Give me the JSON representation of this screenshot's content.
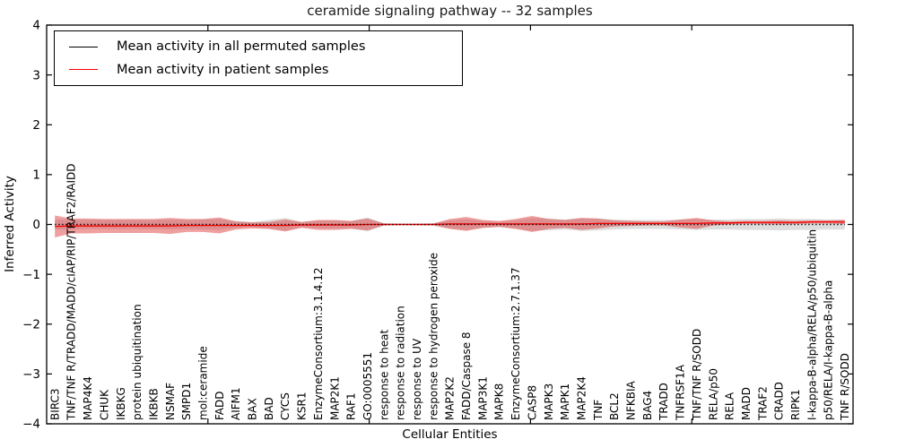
{
  "chart_data": {
    "type": "line",
    "plot_style": "mean activity lines with shaded variability bands per cellular entity",
    "title": "ceramide signaling pathway -- 32 samples",
    "xlabel": "Cellular Entities",
    "ylabel": "Inferred Activity",
    "ylim": [
      -4,
      4
    ],
    "yticks": [
      -4,
      -3,
      -2,
      -1,
      0,
      1,
      2,
      3,
      4
    ],
    "xticks": [
      10,
      20,
      30,
      40
    ],
    "legend_position": "upper left",
    "grid": false,
    "colors": {
      "permuted_line": "#000000",
      "patient_line": "#ff0000",
      "permuted_band": "#9e9e9e",
      "patient_band": "#e04040"
    },
    "categories": [
      "BIRC3",
      "TNF/TNF R/TRADD/MADD/cIAP/RIP/TRAF2/RAIDD",
      "MAP4K4",
      "CHUK",
      "IKBKG",
      "protein ubiquitination",
      "IKBKB",
      "NSMAF",
      "SMPD1",
      "mol:ceramide",
      "FADD",
      "AIFM1",
      "BAX",
      "BAD",
      "CYCS",
      "KSR1",
      "EnzymeConsortium:3.1.4.12",
      "MAP2K1",
      "RAF1",
      "GO:0005551",
      "response to heat",
      "response to radiation",
      "response to UV",
      "response to hydrogen peroxide",
      "MAP2K2",
      "FADD/Caspase 8",
      "MAP3K1",
      "MAPK8",
      "EnzymeConsortium:2.7.1.37",
      "CASP8",
      "MAPK3",
      "MAPK1",
      "MAP2K4",
      "TNF",
      "BCL2",
      "NFKBIA",
      "BAG4",
      "TRADD",
      "TNFRSF1A",
      "TNF/TNF R/SODD",
      "RELA/p50",
      "RELA",
      "MADD",
      "TRAF2",
      "CRADD",
      "RIPK1",
      "I-kappa-B-alpha/RELA/p50/ubiquitin",
      "p50/RELA/I-kappa-B-alpha",
      "TNF R/SODD"
    ],
    "series": [
      {
        "name": "Mean activity in all permuted samples",
        "mean": [
          0,
          0,
          0,
          0,
          0,
          0,
          0,
          0,
          0,
          0,
          0,
          0,
          0,
          0,
          0,
          0,
          0,
          0,
          0,
          0,
          0,
          0,
          0,
          0,
          0,
          0,
          0,
          0,
          0,
          0,
          0,
          0,
          0,
          0,
          0,
          0,
          0,
          0,
          0,
          0,
          0,
          0,
          0,
          0,
          0,
          0,
          0,
          0,
          0
        ],
        "half_width": [
          0.1,
          0.1,
          0.09,
          0.09,
          0.09,
          0.09,
          0.09,
          0.1,
          0.09,
          0.1,
          0.11,
          0.07,
          0.05,
          0.09,
          0.13,
          0.05,
          0.08,
          0.08,
          0.07,
          0.14,
          0.02,
          0.015,
          0.015,
          0.02,
          0.08,
          0.11,
          0.07,
          0.05,
          0.08,
          0.13,
          0.12,
          0.1,
          0.13,
          0.12,
          0.1,
          0.09,
          0.09,
          0.09,
          0.1,
          0.11,
          0.1,
          0.1,
          0.11,
          0.11,
          0.12,
          0.11,
          0.11,
          0.1,
          0.1
        ]
      },
      {
        "name": "Mean activity in patient samples",
        "mean": [
          -0.04,
          -0.03,
          -0.03,
          -0.03,
          -0.03,
          -0.03,
          -0.03,
          -0.03,
          -0.02,
          -0.02,
          -0.02,
          -0.02,
          -0.02,
          -0.02,
          -0.02,
          -0.01,
          -0.01,
          -0.01,
          -0.01,
          0,
          0,
          0,
          0,
          0,
          0.01,
          0.01,
          0.01,
          0.01,
          0.01,
          0.01,
          0.01,
          0.01,
          0.01,
          0.02,
          0.02,
          0.02,
          0.02,
          0.02,
          0.02,
          0.02,
          0.03,
          0.03,
          0.04,
          0.04,
          0.04,
          0.04,
          0.05,
          0.05,
          0.05
        ],
        "half_width": [
          0.22,
          0.15,
          0.15,
          0.14,
          0.14,
          0.14,
          0.14,
          0.16,
          0.13,
          0.13,
          0.16,
          0.08,
          0.06,
          0.07,
          0.12,
          0.06,
          0.1,
          0.1,
          0.08,
          0.12,
          0.02,
          0.015,
          0.015,
          0.02,
          0.1,
          0.14,
          0.08,
          0.06,
          0.1,
          0.16,
          0.1,
          0.08,
          0.12,
          0.1,
          0.06,
          0.05,
          0.04,
          0.04,
          0.08,
          0.11,
          0.05,
          0.03,
          0.03,
          0.03,
          0.04,
          0.03,
          0.03,
          0.03,
          0.04
        ]
      }
    ]
  }
}
